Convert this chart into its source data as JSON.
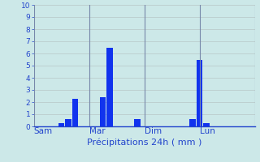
{
  "xlabel": "Précipitations 24h ( mm )",
  "background_color": "#cce8e8",
  "bar_color": "#1133ee",
  "ylim": [
    0,
    10
  ],
  "yticks": [
    0,
    1,
    2,
    3,
    4,
    5,
    6,
    7,
    8,
    9,
    10
  ],
  "ytick_fontsize": 6.5,
  "xlabel_fontsize": 8,
  "xtick_fontsize": 7.5,
  "grid_color": "#bbcccc",
  "vline_color": "#7788aa",
  "tick_color": "#2244cc",
  "label_color": "#2244cc",
  "num_days": 4,
  "slots_per_day": 8,
  "day_labels": [
    "Sam",
    "Mar",
    "Dim",
    "Lun"
  ],
  "bar_positions": [
    2,
    3,
    4,
    5,
    6,
    10,
    11,
    13,
    14,
    15,
    22,
    23,
    24,
    25,
    26,
    27,
    28,
    29
  ],
  "bar_values": [
    0,
    0,
    0.3,
    0.6,
    2.3,
    2.4,
    6.5,
    0,
    0,
    0.6,
    0,
    0.6,
    5.5,
    0.3,
    0,
    0,
    0,
    0
  ],
  "bar_width": 0.9,
  "xlim": [
    0,
    32
  ],
  "day_line_positions": [
    0,
    8,
    16,
    24,
    32
  ]
}
